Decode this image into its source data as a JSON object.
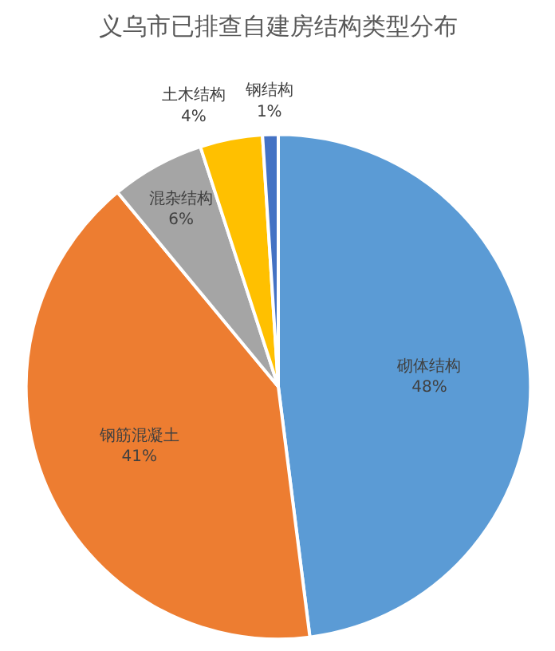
{
  "chart_data": {
    "type": "pie",
    "title": "义乌市已排查自建房结构类型分布",
    "categories": [
      "砌体结构",
      "钢筋混凝土",
      "混杂结构",
      "土木结构",
      "钢结构"
    ],
    "values": [
      48,
      41,
      6,
      4,
      1
    ],
    "colors": [
      "#5b9bd5",
      "#ed7d31",
      "#a5a5a5",
      "#ffc000",
      "#4472c4"
    ],
    "value_labels": [
      "48%",
      "41%",
      "6%",
      "4%",
      "1%"
    ]
  }
}
